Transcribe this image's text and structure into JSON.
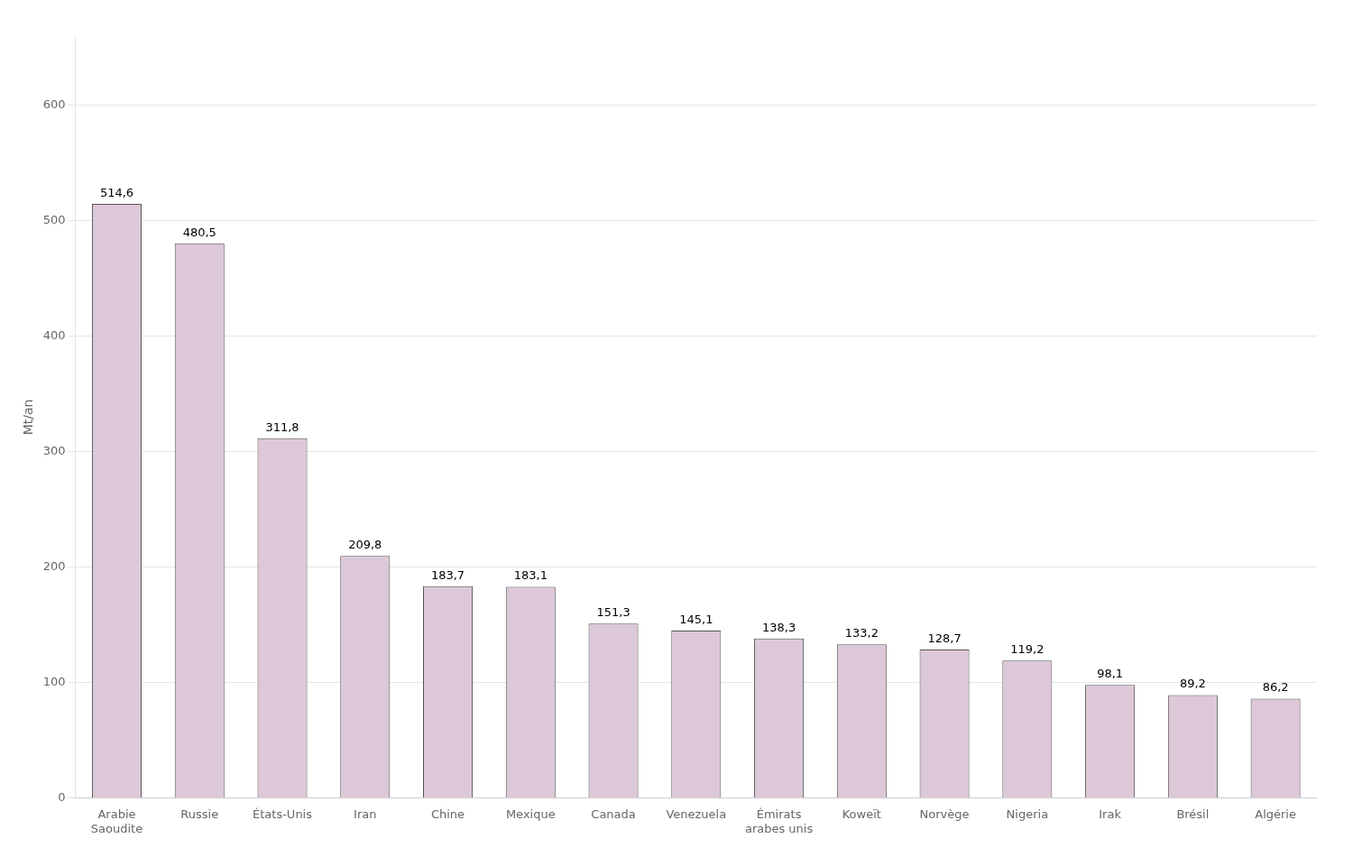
{
  "chart_data": {
    "type": "bar",
    "categories": [
      "Arabie\nSaoudite",
      "Russie",
      "États-Unis",
      "Iran",
      "Chine",
      "Mexique",
      "Canada",
      "Venezuela",
      "Émirats\narabes unis",
      "Koweït",
      "Norvège",
      "Nigeria",
      "Irak",
      "Brésil",
      "Algérie"
    ],
    "values": [
      514.6,
      480.5,
      311.8,
      209.8,
      183.7,
      183.1,
      151.3,
      145.1,
      138.3,
      133.2,
      128.7,
      119.2,
      98.1,
      89.2,
      86.2
    ],
    "value_labels": [
      "514,6",
      "480,5",
      "311,8",
      "209,8",
      "183,7",
      "183,1",
      "151,3",
      "145,1",
      "138,3",
      "133,2",
      "128,7",
      "119,2",
      "98,1",
      "89,2",
      "86,2"
    ],
    "data_labels": true,
    "color": "#ddc8d8",
    "ylabel": "Mt/an",
    "ylim": [
      0,
      660
    ],
    "yticks": [
      0,
      100,
      200,
      300,
      400,
      500,
      600
    ],
    "grid": true
  }
}
